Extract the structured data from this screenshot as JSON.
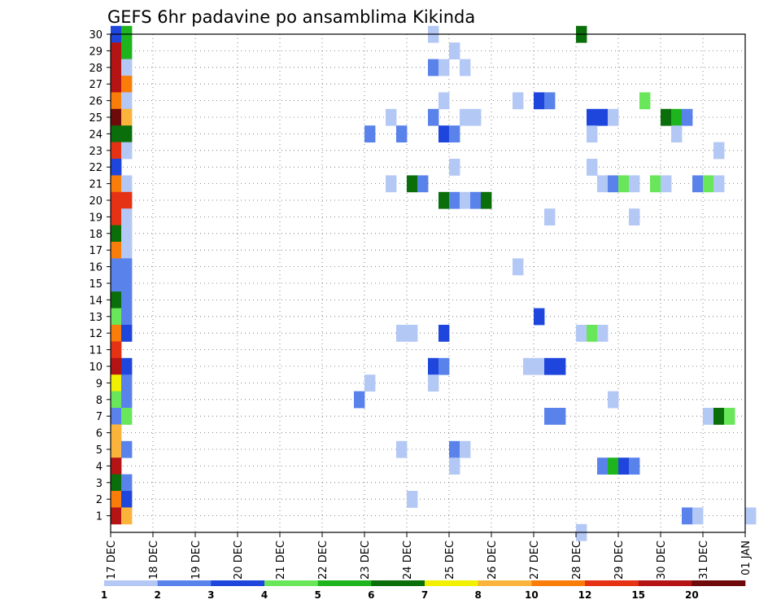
{
  "chart_data": {
    "type": "heatmap",
    "title": "GEFS 6hr padavine po ansamblima Kikinda",
    "xlabel": "",
    "ylabel": "",
    "x_ticks": [
      "17 DEC",
      "18 DEC",
      "19 DEC",
      "20 DEC",
      "21 DEC",
      "22 DEC",
      "23 DEC",
      "24 DEC",
      "25 DEC",
      "26 DEC",
      "27 DEC",
      "28 DEC",
      "29 DEC",
      "30 DEC",
      "31 DEC",
      "01 JAN"
    ],
    "y_ticks": [
      "1",
      "2",
      "3",
      "4",
      "5",
      "6",
      "7",
      "8",
      "9",
      "10",
      "11",
      "12",
      "13",
      "14",
      "15",
      "16",
      "17",
      "18",
      "19",
      "20",
      "21",
      "22",
      "23",
      "24",
      "25",
      "26",
      "27",
      "28",
      "29",
      "30"
    ],
    "time_step_hours": 6,
    "grid": true,
    "colorbar": {
      "labels": [
        "1",
        "2",
        "3",
        "4",
        "5",
        "6",
        "7",
        "8",
        "10",
        "12",
        "15",
        "20"
      ],
      "colors": [
        "#b4c8f5",
        "#5a82eb",
        "#1e46dc",
        "#69e65a",
        "#1eb41e",
        "#0a6e0a",
        "#f0f000",
        "#fab43c",
        "#fa7d0a",
        "#e63214",
        "#b41414",
        "#6e0a0a"
      ]
    },
    "cells": [
      {
        "member": 30,
        "date": "17 DEC",
        "hour": 0,
        "level": 3
      },
      {
        "member": 30,
        "date": "17 DEC",
        "hour": 6,
        "level": 5
      },
      {
        "member": 30,
        "date": "24 DEC",
        "hour": 12,
        "level": 1
      },
      {
        "member": 30,
        "date": "28 DEC",
        "hour": 0,
        "level": 6
      },
      {
        "member": 29,
        "date": "17 DEC",
        "hour": 0,
        "level": 11
      },
      {
        "member": 29,
        "date": "17 DEC",
        "hour": 6,
        "level": 5
      },
      {
        "member": 29,
        "date": "25 DEC",
        "hour": 0,
        "level": 1
      },
      {
        "member": 28,
        "date": "17 DEC",
        "hour": 0,
        "level": 11
      },
      {
        "member": 28,
        "date": "17 DEC",
        "hour": 6,
        "level": 1
      },
      {
        "member": 28,
        "date": "24 DEC",
        "hour": 12,
        "level": 2
      },
      {
        "member": 28,
        "date": "24 DEC",
        "hour": 18,
        "level": 1
      },
      {
        "member": 28,
        "date": "25 DEC",
        "hour": 6,
        "level": 1
      },
      {
        "member": 27,
        "date": "17 DEC",
        "hour": 0,
        "level": 11
      },
      {
        "member": 27,
        "date": "17 DEC",
        "hour": 6,
        "level": 9
      },
      {
        "member": 26,
        "date": "17 DEC",
        "hour": 0,
        "level": 9
      },
      {
        "member": 26,
        "date": "17 DEC",
        "hour": 6,
        "level": 1
      },
      {
        "member": 26,
        "date": "24 DEC",
        "hour": 18,
        "level": 1
      },
      {
        "member": 26,
        "date": "26 DEC",
        "hour": 12,
        "level": 1
      },
      {
        "member": 26,
        "date": "27 DEC",
        "hour": 0,
        "level": 3
      },
      {
        "member": 26,
        "date": "27 DEC",
        "hour": 6,
        "level": 2
      },
      {
        "member": 26,
        "date": "29 DEC",
        "hour": 12,
        "level": 4
      },
      {
        "member": 25,
        "date": "17 DEC",
        "hour": 0,
        "level": 12
      },
      {
        "member": 25,
        "date": "17 DEC",
        "hour": 6,
        "level": 8
      },
      {
        "member": 25,
        "date": "23 DEC",
        "hour": 12,
        "level": 1
      },
      {
        "member": 25,
        "date": "24 DEC",
        "hour": 12,
        "level": 2
      },
      {
        "member": 25,
        "date": "25 DEC",
        "hour": 6,
        "level": 1
      },
      {
        "member": 25,
        "date": "25 DEC",
        "hour": 12,
        "level": 1
      },
      {
        "member": 25,
        "date": "28 DEC",
        "hour": 6,
        "level": 3
      },
      {
        "member": 25,
        "date": "28 DEC",
        "hour": 12,
        "level": 3
      },
      {
        "member": 25,
        "date": "28 DEC",
        "hour": 18,
        "level": 1
      },
      {
        "member": 25,
        "date": "30 DEC",
        "hour": 0,
        "level": 6
      },
      {
        "member": 25,
        "date": "30 DEC",
        "hour": 6,
        "level": 5
      },
      {
        "member": 25,
        "date": "30 DEC",
        "hour": 12,
        "level": 2
      },
      {
        "member": 24,
        "date": "17 DEC",
        "hour": 0,
        "level": 6
      },
      {
        "member": 24,
        "date": "17 DEC",
        "hour": 6,
        "level": 6
      },
      {
        "member": 24,
        "date": "23 DEC",
        "hour": 0,
        "level": 2
      },
      {
        "member": 24,
        "date": "23 DEC",
        "hour": 18,
        "level": 2
      },
      {
        "member": 24,
        "date": "24 DEC",
        "hour": 18,
        "level": 3
      },
      {
        "member": 24,
        "date": "25 DEC",
        "hour": 0,
        "level": 2
      },
      {
        "member": 24,
        "date": "28 DEC",
        "hour": 6,
        "level": 1
      },
      {
        "member": 24,
        "date": "30 DEC",
        "hour": 6,
        "level": 1
      },
      {
        "member": 23,
        "date": "17 DEC",
        "hour": 0,
        "level": 10
      },
      {
        "member": 23,
        "date": "17 DEC",
        "hour": 6,
        "level": 1
      },
      {
        "member": 23,
        "date": "31 DEC",
        "hour": 6,
        "level": 1
      },
      {
        "member": 22,
        "date": "17 DEC",
        "hour": 0,
        "level": 3
      },
      {
        "member": 22,
        "date": "25 DEC",
        "hour": 0,
        "level": 1
      },
      {
        "member": 22,
        "date": "28 DEC",
        "hour": 6,
        "level": 1
      },
      {
        "member": 21,
        "date": "17 DEC",
        "hour": 0,
        "level": 9
      },
      {
        "member": 21,
        "date": "17 DEC",
        "hour": 6,
        "level": 1
      },
      {
        "member": 21,
        "date": "23 DEC",
        "hour": 12,
        "level": 1
      },
      {
        "member": 21,
        "date": "23 DEC",
        "hour": 6,
        "level": 0
      },
      {
        "member": 21,
        "date": "24 DEC",
        "hour": 0,
        "level": 6
      },
      {
        "member": 21,
        "date": "24 DEC",
        "hour": 6,
        "level": 2
      },
      {
        "member": 21,
        "date": "28 DEC",
        "hour": 12,
        "level": 1
      },
      {
        "member": 21,
        "date": "28 DEC",
        "hour": 18,
        "level": 2
      },
      {
        "member": 21,
        "date": "29 DEC",
        "hour": 0,
        "level": 4
      },
      {
        "member": 21,
        "date": "29 DEC",
        "hour": 6,
        "level": 1
      },
      {
        "member": 21,
        "date": "29 DEC",
        "hour": 18,
        "level": 4
      },
      {
        "member": 21,
        "date": "30 DEC",
        "hour": 0,
        "level": 1
      },
      {
        "member": 21,
        "date": "30 DEC",
        "hour": 18,
        "level": 2
      },
      {
        "member": 21,
        "date": "31 DEC",
        "hour": 0,
        "level": 4
      },
      {
        "member": 21,
        "date": "31 DEC",
        "hour": 6,
        "level": 1
      },
      {
        "member": 20,
        "date": "17 DEC",
        "hour": 0,
        "level": 10
      },
      {
        "member": 20,
        "date": "17 DEC",
        "hour": 6,
        "level": 10
      },
      {
        "member": 20,
        "date": "24 DEC",
        "hour": 18,
        "level": 6
      },
      {
        "member": 20,
        "date": "25 DEC",
        "hour": 0,
        "level": 2
      },
      {
        "member": 20,
        "date": "25 DEC",
        "hour": 6,
        "level": 1
      },
      {
        "member": 20,
        "date": "25 DEC",
        "hour": 12,
        "level": 2
      },
      {
        "member": 20,
        "date": "25 DEC",
        "hour": 18,
        "level": 6
      },
      {
        "member": 19,
        "date": "17 DEC",
        "hour": 0,
        "level": 10
      },
      {
        "member": 19,
        "date": "17 DEC",
        "hour": 6,
        "level": 1
      },
      {
        "member": 19,
        "date": "27 DEC",
        "hour": 6,
        "level": 1
      },
      {
        "member": 19,
        "date": "29 DEC",
        "hour": 6,
        "level": 1
      },
      {
        "member": 18,
        "date": "17 DEC",
        "hour": 0,
        "level": 6
      },
      {
        "member": 18,
        "date": "17 DEC",
        "hour": 6,
        "level": 1
      },
      {
        "member": 17,
        "date": "17 DEC",
        "hour": 0,
        "level": 9
      },
      {
        "member": 17,
        "date": "17 DEC",
        "hour": 6,
        "level": 1
      },
      {
        "member": 16,
        "date": "17 DEC",
        "hour": 0,
        "level": 2
      },
      {
        "member": 16,
        "date": "17 DEC",
        "hour": 6,
        "level": 2
      },
      {
        "member": 16,
        "date": "26 DEC",
        "hour": 12,
        "level": 1
      },
      {
        "member": 15,
        "date": "17 DEC",
        "hour": 0,
        "level": 2
      },
      {
        "member": 15,
        "date": "17 DEC",
        "hour": 6,
        "level": 2
      },
      {
        "member": 14,
        "date": "17 DEC",
        "hour": 0,
        "level": 6
      },
      {
        "member": 14,
        "date": "17 DEC",
        "hour": 6,
        "level": 2
      },
      {
        "member": 13,
        "date": "17 DEC",
        "hour": 0,
        "level": 4
      },
      {
        "member": 13,
        "date": "17 DEC",
        "hour": 6,
        "level": 2
      },
      {
        "member": 13,
        "date": "27 DEC",
        "hour": 0,
        "level": 3
      },
      {
        "member": 12,
        "date": "17 DEC",
        "hour": 0,
        "level": 9
      },
      {
        "member": 12,
        "date": "17 DEC",
        "hour": 6,
        "level": 3
      },
      {
        "member": 12,
        "date": "23 DEC",
        "hour": 18,
        "level": 1
      },
      {
        "member": 12,
        "date": "24 DEC",
        "hour": 0,
        "level": 1
      },
      {
        "member": 12,
        "date": "24 DEC",
        "hour": 18,
        "level": 3
      },
      {
        "member": 12,
        "date": "28 DEC",
        "hour": 0,
        "level": 1
      },
      {
        "member": 12,
        "date": "28 DEC",
        "hour": 6,
        "level": 4
      },
      {
        "member": 12,
        "date": "28 DEC",
        "hour": 12,
        "level": 1
      },
      {
        "member": 11,
        "date": "17 DEC",
        "hour": 0,
        "level": 10
      },
      {
        "member": 10,
        "date": "17 DEC",
        "hour": 0,
        "level": 11
      },
      {
        "member": 10,
        "date": "17 DEC",
        "hour": 6,
        "level": 3
      },
      {
        "member": 10,
        "date": "24 DEC",
        "hour": 12,
        "level": 3
      },
      {
        "member": 10,
        "date": "24 DEC",
        "hour": 18,
        "level": 2
      },
      {
        "member": 10,
        "date": "26 DEC",
        "hour": 18,
        "level": 1
      },
      {
        "member": 10,
        "date": "27 DEC",
        "hour": 0,
        "level": 1
      },
      {
        "member": 10,
        "date": "27 DEC",
        "hour": 6,
        "level": 3
      },
      {
        "member": 10,
        "date": "27 DEC",
        "hour": 12,
        "level": 3
      },
      {
        "member": 9,
        "date": "17 DEC",
        "hour": 0,
        "level": 7
      },
      {
        "member": 9,
        "date": "17 DEC",
        "hour": 6,
        "level": 2
      },
      {
        "member": 9,
        "date": "23 DEC",
        "hour": 0,
        "level": 1
      },
      {
        "member": 9,
        "date": "24 DEC",
        "hour": 12,
        "level": 1
      },
      {
        "member": 8,
        "date": "17 DEC",
        "hour": 0,
        "level": 4
      },
      {
        "member": 8,
        "date": "17 DEC",
        "hour": 6,
        "level": 2
      },
      {
        "member": 8,
        "date": "22 DEC",
        "hour": 18,
        "level": 2
      },
      {
        "member": 8,
        "date": "28 DEC",
        "hour": 18,
        "level": 1
      },
      {
        "member": 7,
        "date": "17 DEC",
        "hour": 0,
        "level": 2
      },
      {
        "member": 7,
        "date": "17 DEC",
        "hour": 6,
        "level": 4
      },
      {
        "member": 7,
        "date": "27 DEC",
        "hour": 6,
        "level": 2
      },
      {
        "member": 7,
        "date": "27 DEC",
        "hour": 12,
        "level": 2
      },
      {
        "member": 7,
        "date": "31 DEC",
        "hour": 0,
        "level": 1
      },
      {
        "member": 7,
        "date": "31 DEC",
        "hour": 6,
        "level": 6
      },
      {
        "member": 7,
        "date": "31 DEC",
        "hour": 12,
        "level": 4
      },
      {
        "member": 6,
        "date": "17 DEC",
        "hour": 0,
        "level": 8
      },
      {
        "member": 5,
        "date": "17 DEC",
        "hour": 0,
        "level": 8
      },
      {
        "member": 5,
        "date": "17 DEC",
        "hour": 6,
        "level": 2
      },
      {
        "member": 5,
        "date": "23 DEC",
        "hour": 18,
        "level": 1
      },
      {
        "member": 5,
        "date": "25 DEC",
        "hour": 0,
        "level": 2
      },
      {
        "member": 5,
        "date": "25 DEC",
        "hour": 6,
        "level": 1
      },
      {
        "member": 4,
        "date": "17 DEC",
        "hour": 0,
        "level": 11
      },
      {
        "member": 4,
        "date": "25 DEC",
        "hour": 0,
        "level": 1
      },
      {
        "member": 4,
        "date": "28 DEC",
        "hour": 12,
        "level": 2
      },
      {
        "member": 4,
        "date": "28 DEC",
        "hour": 18,
        "level": 5
      },
      {
        "member": 4,
        "date": "29 DEC",
        "hour": 0,
        "level": 3
      },
      {
        "member": 4,
        "date": "29 DEC",
        "hour": 6,
        "level": 2
      },
      {
        "member": 3,
        "date": "17 DEC",
        "hour": 0,
        "level": 6
      },
      {
        "member": 3,
        "date": "17 DEC",
        "hour": 6,
        "level": 2
      },
      {
        "member": 2,
        "date": "17 DEC",
        "hour": 0,
        "level": 9
      },
      {
        "member": 2,
        "date": "17 DEC",
        "hour": 6,
        "level": 3
      },
      {
        "member": 2,
        "date": "24 DEC",
        "hour": 0,
        "level": 1
      },
      {
        "member": 1,
        "date": "17 DEC",
        "hour": 0,
        "level": 11
      },
      {
        "member": 1,
        "date": "17 DEC",
        "hour": 6,
        "level": 8
      },
      {
        "member": 1,
        "date": "30 DEC",
        "hour": 12,
        "level": 2
      },
      {
        "member": 1,
        "date": "30 DEC",
        "hour": 18,
        "level": 1
      },
      {
        "member": 1,
        "date": "01 JAN",
        "hour": 0,
        "level": 1
      },
      {
        "member": 0,
        "date": "28 DEC",
        "hour": 0,
        "level": 1
      }
    ]
  }
}
